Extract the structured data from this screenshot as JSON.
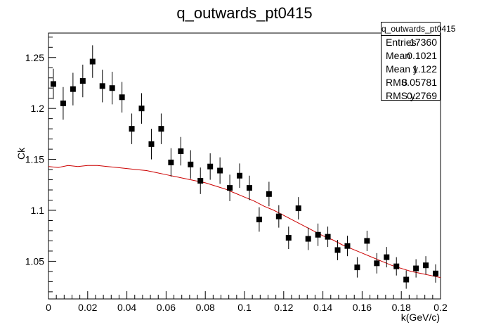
{
  "title": "q_outwards_pt0415",
  "stats": {
    "name": "q_outwards_pt0415",
    "rows": [
      {
        "key": "Entries",
        "value": "17360"
      },
      {
        "key": "Mean",
        "value": "0.1021"
      },
      {
        "key": "Mean y",
        "value": "1.122"
      },
      {
        "key": "RMS",
        "value": "0.05781"
      },
      {
        "key": "RMS y",
        "value": "0.2769"
      }
    ]
  },
  "chart_data": {
    "type": "scatter",
    "title": "q_outwards_pt0415",
    "xlabel": "k(GeV/c)",
    "ylabel": "Ck",
    "xlim": [
      0,
      0.2
    ],
    "ylim": [
      1.013,
      1.274
    ],
    "x_ticks": [
      "0",
      "0.02",
      "0.04",
      "0.06",
      "0.08",
      "0.1",
      "0.12",
      "0.14",
      "0.16",
      "0.18",
      "0.2"
    ],
    "y_ticks": [
      "1.05",
      "1.1",
      "1.15",
      "1.2",
      "1.25"
    ],
    "grid": false,
    "legend": "none",
    "colors": {
      "points": "#000000",
      "curve": "#cc0000"
    },
    "series": [
      {
        "kind": "points_with_errors",
        "x": [
          0.0025,
          0.0075,
          0.0125,
          0.0175,
          0.0225,
          0.0275,
          0.0325,
          0.0375,
          0.0425,
          0.0475,
          0.0525,
          0.0575,
          0.0625,
          0.0675,
          0.0725,
          0.0775,
          0.0825,
          0.0875,
          0.0925,
          0.0975,
          0.1025,
          0.1075,
          0.1125,
          0.1175,
          0.1225,
          0.1275,
          0.1325,
          0.1375,
          0.1425,
          0.1475,
          0.1525,
          0.1575,
          0.1625,
          0.1675,
          0.1725,
          0.1775,
          0.1825,
          0.1875,
          0.1925,
          0.1975
        ],
        "y": [
          1.224,
          1.205,
          1.219,
          1.227,
          1.246,
          1.222,
          1.22,
          1.211,
          1.18,
          1.2,
          1.165,
          1.18,
          1.147,
          1.158,
          1.145,
          1.129,
          1.143,
          1.139,
          1.122,
          1.134,
          1.122,
          1.091,
          1.116,
          1.094,
          1.073,
          1.102,
          1.072,
          1.076,
          1.074,
          1.061,
          1.065,
          1.044,
          1.07,
          1.048,
          1.054,
          1.045,
          1.032,
          1.043,
          1.046,
          1.038
        ],
        "yerr": [
          0.015,
          0.016,
          0.016,
          0.016,
          0.016,
          0.016,
          0.016,
          0.015,
          0.015,
          0.015,
          0.015,
          0.015,
          0.014,
          0.014,
          0.014,
          0.013,
          0.013,
          0.013,
          0.013,
          0.012,
          0.012,
          0.012,
          0.012,
          0.011,
          0.011,
          0.011,
          0.011,
          0.011,
          0.01,
          0.01,
          0.01,
          0.01,
          0.01,
          0.01,
          0.01,
          0.009,
          0.009,
          0.009,
          0.009,
          0.009
        ]
      },
      {
        "kind": "curve",
        "x": [
          0.0,
          0.005,
          0.01,
          0.015,
          0.02,
          0.025,
          0.03,
          0.035,
          0.04,
          0.045,
          0.05,
          0.055,
          0.06,
          0.065,
          0.07,
          0.075,
          0.08,
          0.085,
          0.09,
          0.095,
          0.1,
          0.105,
          0.11,
          0.115,
          0.12,
          0.125,
          0.13,
          0.135,
          0.14,
          0.145,
          0.15,
          0.155,
          0.16,
          0.165,
          0.17,
          0.175,
          0.18,
          0.185,
          0.19,
          0.195,
          0.2
        ],
        "y": [
          1.143,
          1.142,
          1.144,
          1.143,
          1.144,
          1.144,
          1.143,
          1.142,
          1.141,
          1.14,
          1.139,
          1.137,
          1.135,
          1.133,
          1.131,
          1.129,
          1.127,
          1.124,
          1.121,
          1.117,
          1.113,
          1.109,
          1.104,
          1.1,
          1.095,
          1.09,
          1.085,
          1.08,
          1.075,
          1.071,
          1.066,
          1.062,
          1.058,
          1.054,
          1.05,
          1.046,
          1.043,
          1.04,
          1.038,
          1.036,
          1.034
        ]
      }
    ]
  }
}
